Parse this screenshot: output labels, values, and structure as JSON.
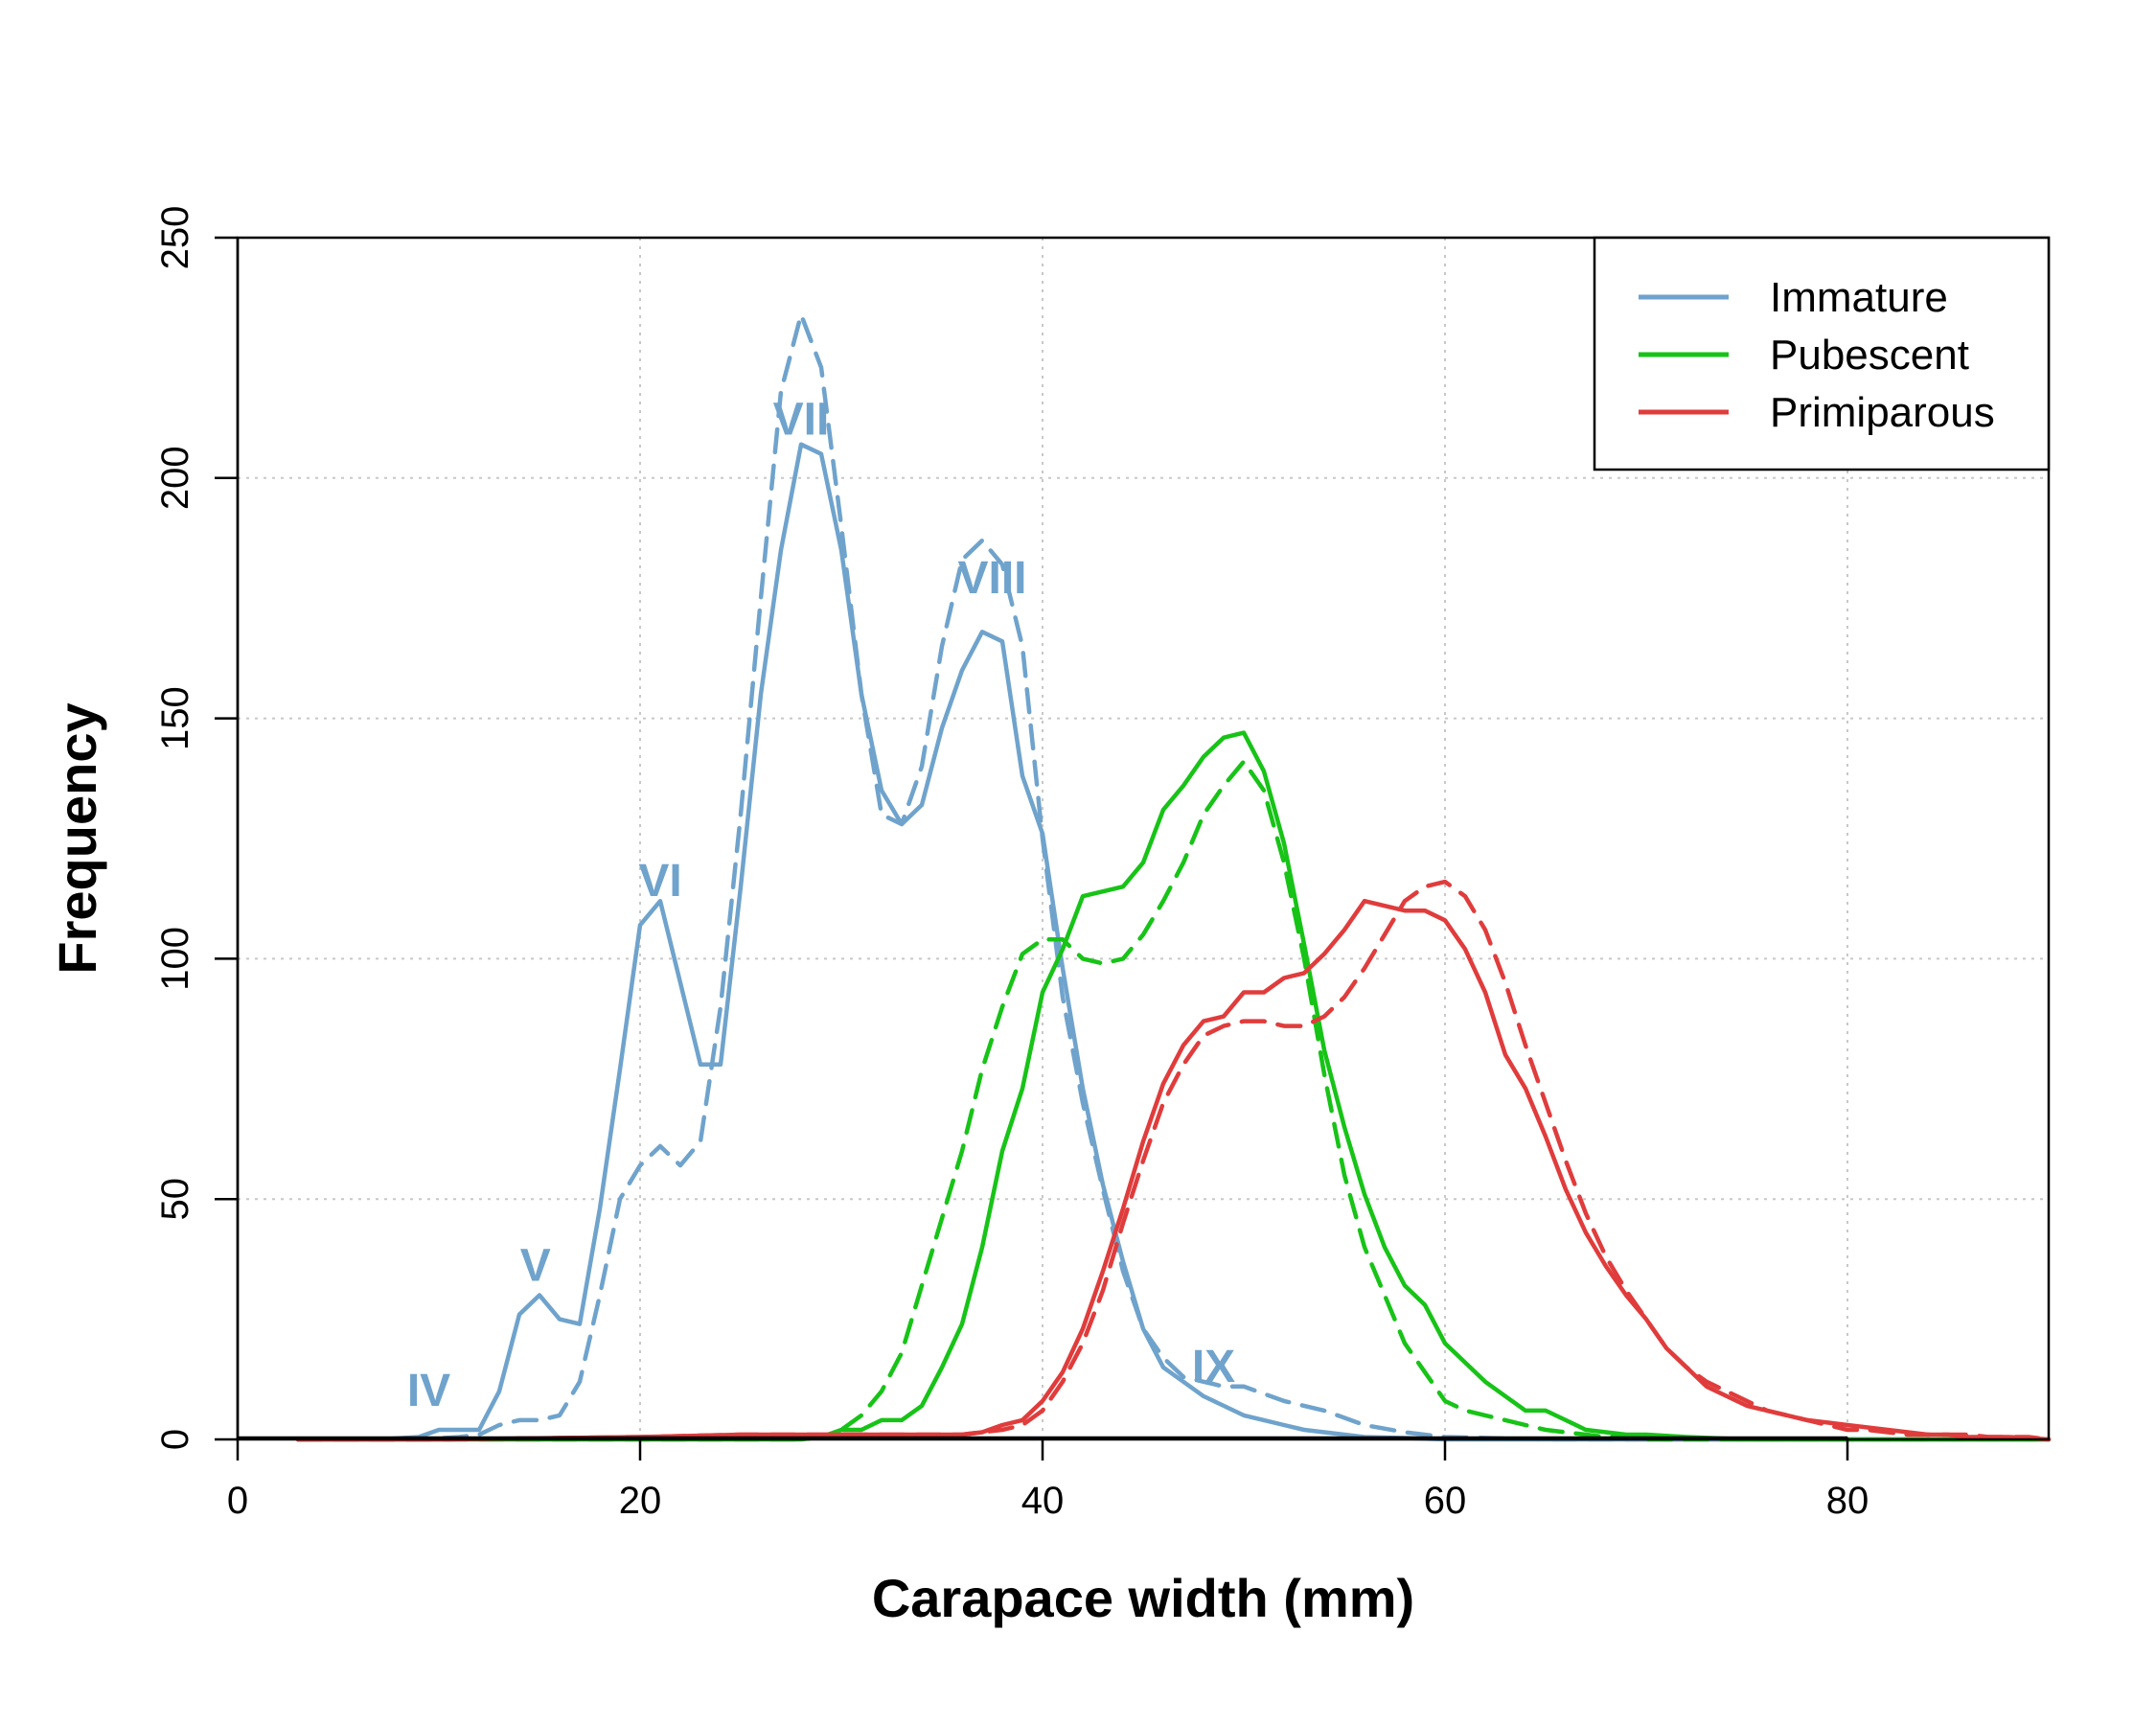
{
  "chart_data": {
    "type": "line",
    "title": "",
    "xlabel": "Carapace width (mm)",
    "ylabel": "Frequency",
    "xlim": [
      0,
      90
    ],
    "ylim": [
      0,
      250
    ],
    "xticks": [
      0,
      20,
      40,
      60,
      80
    ],
    "yticks": [
      0,
      50,
      100,
      150,
      200,
      250
    ],
    "grid": true,
    "legend_position": "top-right",
    "legend": [
      {
        "label": "Immature",
        "color": "#6fa3cc"
      },
      {
        "label": "Pubescent",
        "color": "#17c317"
      },
      {
        "label": "Primiparous",
        "color": "#e03c3c"
      }
    ],
    "annotations": [
      {
        "text": "IV",
        "x": 9.5,
        "y": 7
      },
      {
        "text": "V",
        "x": 14.8,
        "y": 33
      },
      {
        "text": "VI",
        "x": 21,
        "y": 113
      },
      {
        "text": "VII",
        "x": 28,
        "y": 209
      },
      {
        "text": "VIII",
        "x": 37.5,
        "y": 176
      },
      {
        "text": "IX",
        "x": 48.5,
        "y": 12
      }
    ],
    "series": [
      {
        "name": "Immature",
        "style": "solid",
        "color": "#6fa3cc",
        "x": [
          3,
          5,
          7,
          9,
          10,
          11,
          12,
          13,
          14,
          15,
          16,
          17,
          18,
          19,
          20,
          21,
          22,
          23,
          24,
          25,
          26,
          27,
          28,
          29,
          30,
          31,
          32,
          33,
          34,
          35,
          36,
          37,
          38,
          39,
          40,
          41,
          42,
          43,
          44,
          45,
          46,
          47,
          48,
          49,
          50,
          51,
          52,
          53,
          54,
          55,
          56,
          58,
          60,
          65,
          70,
          75,
          80,
          85,
          90
        ],
        "y": [
          0,
          0,
          0,
          0.5,
          2,
          2,
          2,
          10,
          26,
          30,
          25,
          24,
          48,
          77,
          107,
          112,
          95,
          78,
          78,
          115,
          155,
          185,
          207,
          205,
          185,
          155,
          135,
          128,
          132,
          148,
          160,
          168,
          166,
          138,
          126,
          98,
          73,
          53,
          37,
          23,
          15,
          12,
          9,
          7,
          5,
          4,
          3,
          2,
          1.5,
          1,
          0.5,
          0.3,
          0,
          0,
          0,
          0,
          0,
          0,
          0
        ]
      },
      {
        "name": "Immature",
        "style": "dashed",
        "color": "#6fa3cc",
        "x": [
          3,
          5,
          7,
          9,
          11,
          12,
          13,
          14,
          15,
          16,
          17,
          18,
          19,
          20,
          21,
          22,
          23,
          24,
          25,
          26,
          27,
          28,
          29,
          30,
          31,
          32,
          33,
          34,
          35,
          36,
          37,
          38,
          39,
          40,
          41,
          42,
          43,
          44,
          45,
          46,
          47,
          48,
          49,
          50,
          52,
          54,
          56,
          58,
          60,
          65,
          70,
          75,
          80,
          85,
          90
        ],
        "y": [
          0,
          0,
          0,
          0,
          0.5,
          1,
          3,
          4,
          4,
          5,
          12,
          30,
          50,
          57,
          61,
          57,
          62,
          90,
          130,
          175,
          218,
          234,
          223,
          190,
          155,
          130,
          128,
          140,
          165,
          183,
          187,
          182,
          165,
          125,
          92,
          70,
          52,
          35,
          23,
          17,
          13,
          12,
          11,
          11,
          8,
          6,
          3,
          1.5,
          0.5,
          0,
          0,
          0,
          0,
          0,
          0
        ]
      },
      {
        "name": "Pubescent",
        "style": "solid",
        "color": "#17c317",
        "x": [
          3,
          10,
          20,
          25,
          28,
          29,
          30,
          31,
          32,
          33,
          34,
          35,
          36,
          37,
          38,
          39,
          40,
          41,
          42,
          43,
          44,
          45,
          46,
          47,
          48,
          49,
          50,
          51,
          52,
          53,
          54,
          55,
          56,
          57,
          58,
          59,
          60,
          61,
          62,
          63,
          64,
          65,
          66,
          67,
          68,
          69,
          70,
          72,
          75,
          80,
          85,
          90
        ],
        "y": [
          0,
          0,
          0,
          0,
          0,
          0.5,
          2,
          2,
          4,
          4,
          7,
          15,
          24,
          40,
          60,
          73,
          93,
          102,
          113,
          114,
          115,
          120,
          131,
          136,
          142,
          146,
          147,
          139,
          124,
          103,
          81,
          65,
          51,
          40,
          32,
          28,
          20,
          16,
          12,
          9,
          6,
          6,
          4,
          2,
          1.5,
          1,
          1,
          0.5,
          0,
          0,
          0,
          0
        ]
      },
      {
        "name": "Pubescent",
        "style": "dashed",
        "color": "#17c317",
        "x": [
          3,
          10,
          20,
          25,
          28,
          29,
          30,
          31,
          32,
          33,
          34,
          35,
          36,
          37,
          38,
          39,
          40,
          41,
          42,
          43,
          44,
          45,
          46,
          47,
          48,
          49,
          50,
          51,
          52,
          53,
          54,
          55,
          56,
          57,
          58,
          59,
          60,
          61,
          62,
          63,
          64,
          65,
          66,
          67,
          68,
          69,
          70,
          72,
          75,
          80,
          85,
          90
        ],
        "y": [
          0,
          0,
          0,
          0,
          0,
          0.5,
          2,
          5,
          10,
          18,
          32,
          46,
          60,
          77,
          90,
          101,
          104,
          104,
          100,
          99,
          100,
          105,
          112,
          120,
          130,
          136,
          141,
          135,
          120,
          100,
          76,
          55,
          40,
          30,
          20,
          14,
          8,
          6,
          5,
          4,
          3,
          2,
          1.5,
          1,
          0.5,
          0.5,
          0,
          0,
          0,
          0,
          0,
          0
        ]
      },
      {
        "name": "Primiparous",
        "style": "solid",
        "color": "#e03c3c",
        "x": [
          3,
          10,
          20,
          25,
          30,
          35,
          36,
          37,
          38,
          39,
          40,
          41,
          42,
          43,
          44,
          45,
          46,
          47,
          48,
          49,
          50,
          51,
          52,
          53,
          54,
          55,
          56,
          57,
          58,
          59,
          60,
          61,
          62,
          63,
          64,
          65,
          66,
          67,
          68,
          69,
          70,
          71,
          72,
          73,
          74,
          75,
          76,
          77,
          78,
          79,
          80,
          81,
          82,
          83,
          84,
          85,
          86,
          87,
          88,
          89,
          90
        ],
        "y": [
          0,
          0,
          0.5,
          1,
          1,
          1,
          1,
          1.5,
          3,
          4,
          8,
          14,
          23,
          35,
          48,
          62,
          74,
          82,
          87,
          88,
          93,
          93,
          96,
          97,
          101,
          106,
          112,
          111,
          110,
          110,
          108,
          102,
          93,
          80,
          73,
          63,
          52,
          43,
          36,
          30,
          25,
          19,
          15,
          11,
          9,
          7,
          6,
          5,
          4,
          3.5,
          3,
          2.5,
          2,
          1.5,
          1,
          1,
          0.5,
          0.5,
          0.5,
          0.3,
          0
        ]
      },
      {
        "name": "Primiparous",
        "style": "dashed",
        "color": "#e03c3c",
        "x": [
          3,
          10,
          20,
          25,
          30,
          35,
          36,
          37,
          38,
          39,
          40,
          41,
          42,
          43,
          44,
          45,
          46,
          47,
          48,
          49,
          50,
          51,
          52,
          53,
          54,
          55,
          56,
          57,
          58,
          59,
          60,
          61,
          62,
          63,
          64,
          65,
          66,
          67,
          68,
          69,
          70,
          71,
          72,
          73,
          74,
          75,
          76,
          77,
          78,
          79,
          80,
          81,
          82,
          83,
          84,
          85,
          86,
          87,
          88,
          89,
          90
        ],
        "y": [
          0,
          0,
          0.5,
          1,
          1,
          1,
          1,
          1.5,
          2,
          3,
          6,
          12,
          20,
          31,
          45,
          58,
          70,
          78,
          84,
          86,
          87,
          87,
          86,
          86,
          88,
          92,
          98,
          105,
          112,
          115,
          116,
          113,
          106,
          95,
          82,
          70,
          58,
          47,
          38,
          31,
          25,
          19,
          15,
          12,
          10,
          8,
          6,
          5,
          4,
          3,
          2,
          2,
          1.5,
          1,
          1,
          1,
          1,
          0.5,
          0.5,
          0.5,
          0
        ]
      }
    ]
  }
}
